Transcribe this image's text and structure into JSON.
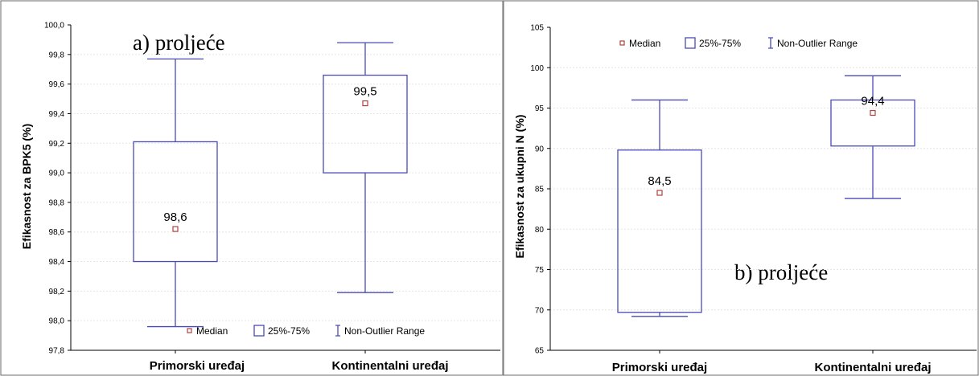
{
  "colors": {
    "box": "#4a4ab6",
    "median": "#b0413e",
    "axis": "#000000",
    "frame": "#808080"
  },
  "legend": {
    "median": "Median",
    "iqr": "25%-75%",
    "range": "Non-Outlier Range"
  },
  "chart_data": [
    {
      "type": "box",
      "annotation": "a) proljeće",
      "ylabel": "Efikasnost za BPK5 (%)",
      "ylim": [
        97.8,
        100.0
      ],
      "yticks": [
        "97,8",
        "98,0",
        "98,2",
        "98,4",
        "98,6",
        "98,8",
        "99,0",
        "99,2",
        "99,4",
        "99,6",
        "99,8",
        "100,0"
      ],
      "categories": [
        "Primorski uređaj",
        "Kontinentalni uređaj"
      ],
      "boxes": [
        {
          "category": "Primorski uređaj",
          "min": 97.96,
          "q1": 98.4,
          "median": 98.62,
          "q3": 99.21,
          "max": 99.77,
          "median_label": "98,6"
        },
        {
          "category": "Kontinentalni uređaj",
          "min": 98.19,
          "q1": 99.0,
          "median": 99.47,
          "q3": 99.66,
          "max": 99.88,
          "median_label": "99,5"
        }
      ],
      "legend_position": "bottom"
    },
    {
      "type": "box",
      "annotation": "b) proljeće",
      "ylabel": "Efikasnost za ukupni N (%)",
      "ylim": [
        65,
        105
      ],
      "yticks": [
        "65",
        "70",
        "75",
        "80",
        "85",
        "90",
        "95",
        "100",
        "105"
      ],
      "categories": [
        "Primorski uređaj",
        "Kontinentalni uređaj"
      ],
      "boxes": [
        {
          "category": "Primorski uređaj",
          "min": 69.2,
          "q1": 69.7,
          "median": 84.5,
          "q3": 89.8,
          "max": 96.0,
          "median_label": "84,5"
        },
        {
          "category": "Kontinentalni uređaj",
          "min": 83.8,
          "q1": 90.3,
          "median": 94.4,
          "q3": 96.0,
          "max": 99.0,
          "median_label": "94,4"
        }
      ],
      "legend_position": "top"
    }
  ]
}
